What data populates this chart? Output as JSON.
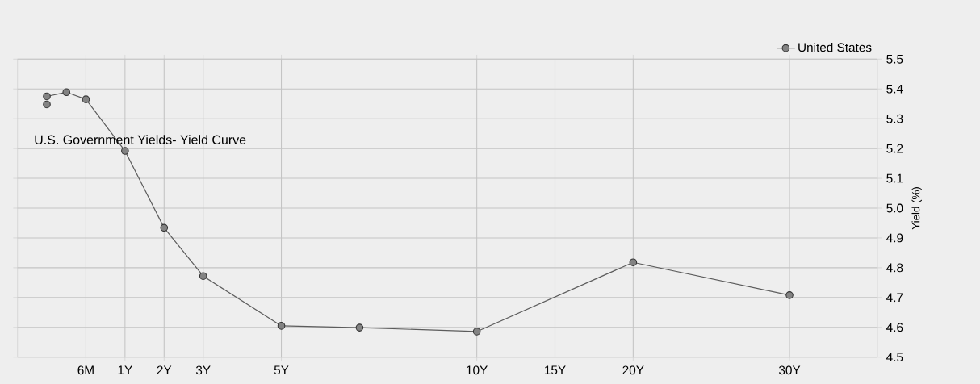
{
  "chart_data": {
    "type": "line",
    "title": "U.S. Government Yields- Yield Curve",
    "ylabel": "Yield (%)",
    "categories": [
      null,
      null,
      null,
      "6M",
      null,
      "1Y",
      null,
      "2Y",
      null,
      "3Y",
      null,
      null,
      null,
      "5Y",
      null,
      null,
      null,
      null,
      null,
      null,
      null,
      null,
      null,
      "10Y",
      null,
      null,
      null,
      "15Y",
      null,
      null,
      null,
      "20Y",
      null,
      null,
      null,
      null,
      null,
      null,
      null,
      "30Y",
      null,
      null,
      null,
      null
    ],
    "series": [
      {
        "name": "United States",
        "color": "#838383",
        "values": [
          null,
          5.375,
          5.389,
          5.365,
          null,
          5.192,
          null,
          4.934,
          null,
          4.772,
          null,
          null,
          null,
          4.605,
          null,
          null,
          null,
          4.599,
          null,
          null,
          null,
          null,
          null,
          4.586,
          null,
          null,
          null,
          null,
          null,
          null,
          null,
          4.818,
          null,
          null,
          null,
          null,
          null,
          null,
          null,
          4.708,
          null,
          null,
          null,
          null
        ]
      },
      {
        "type": "scatter",
        "color": "#838383",
        "values": [
          null,
          5.348,
          null,
          null,
          null,
          null,
          null,
          null,
          null,
          null,
          null,
          null,
          null,
          null,
          null,
          null,
          null,
          null,
          null,
          null,
          null,
          null,
          null,
          null,
          null,
          null,
          null,
          null,
          null,
          null,
          null,
          null,
          null,
          null,
          null,
          null,
          null,
          null,
          null,
          null,
          null,
          null,
          null,
          null
        ]
      }
    ],
    "ylim": [
      4.5,
      5.5
    ],
    "yticks": [
      4.5,
      4.6,
      4.7,
      4.8,
      4.9,
      {
        "value": 5.0,
        "label": "5.0"
      },
      5.1,
      5.2,
      5.3,
      5.4,
      5.5
    ],
    "grid": true,
    "legend": "top right",
    "marker": "circle",
    "line_style": "solid"
  }
}
